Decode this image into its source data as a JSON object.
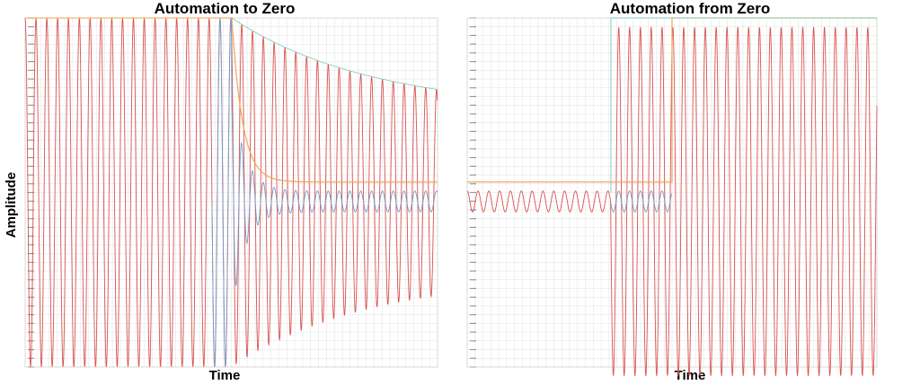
{
  "colors": {
    "sine": "#d9534f",
    "envelope": "#f0a050",
    "blue": "#7a9cc8",
    "teal": "#6ec0b0",
    "grid": "#e3e3e3",
    "border": "#cccccc"
  },
  "chart_data": [
    {
      "type": "line",
      "title": "Automation to Zero",
      "xlabel": "Time",
      "ylabel": "Amplitude",
      "grid": true,
      "ylim": [
        -1,
        1
      ],
      "series": [
        {
          "values": [],
          "color": "#d9534f"
        },
        {
          "values": [],
          "color": "#f0a050"
        },
        {
          "values": [],
          "color": "#7a9cc8"
        },
        {
          "values": [],
          "color": "#6ec0b0"
        }
      ]
    },
    {
      "type": "line",
      "title": "Automation from Zero",
      "xlabel": "Time",
      "ylabel": "",
      "grid": true,
      "ylim": [
        -1,
        1
      ],
      "legend_position": "top-right",
      "series": [
        {
          "values": [],
          "color": "#d9534f"
        },
        {
          "values": [],
          "color": "#f0a050"
        },
        {
          "values": [],
          "color": "#7a9cc8"
        },
        {
          "values": [],
          "color": "#6ec0b0"
        }
      ]
    }
  ]
}
